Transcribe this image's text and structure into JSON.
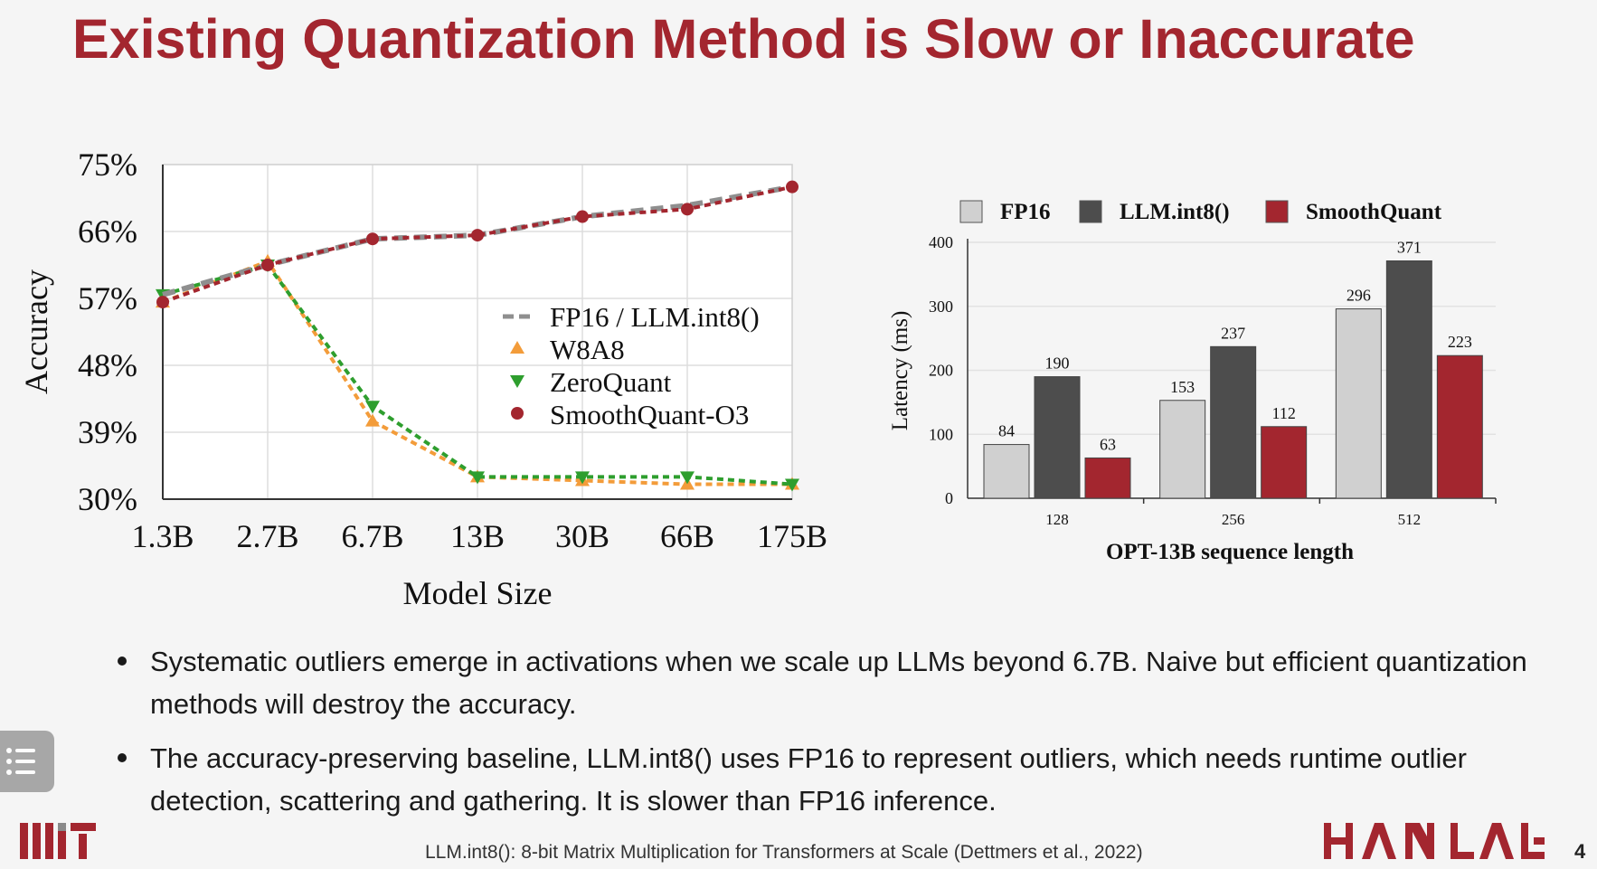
{
  "slide": {
    "title": "Existing Quantization Method is Slow or Inaccurate",
    "bullets": [
      "Systematic outliers emerge in activations when we scale up LLMs beyond 6.7B. Naive but efficient quantization methods will destroy the accuracy.",
      "The accuracy-preserving baseline, LLM.int8() uses FP16 to represent outliers, which needs runtime outlier detection, scattering and gathering. It is slower than FP16 inference."
    ],
    "citation": "LLM.int8(): 8-bit Matrix Multiplication for Transformers at Scale (Dettmers et al., 2022)",
    "page_number": "4",
    "logos": {
      "left": "MIT",
      "right": "HAN LAB"
    },
    "icons": {
      "menu": "menu-list-icon"
    }
  },
  "chart_data": [
    {
      "type": "line",
      "xlabel": "Model Size",
      "ylabel": "Accuracy",
      "categories": [
        "1.3B",
        "2.7B",
        "6.7B",
        "13B",
        "30B",
        "66B",
        "175B"
      ],
      "yticks": [
        "30%",
        "39%",
        "48%",
        "57%",
        "66%",
        "75%"
      ],
      "ylim": [
        30,
        75
      ],
      "grid": true,
      "legend_position": "center-right",
      "series": [
        {
          "name": "FP16 / LLM.int8()",
          "values": [
            57.5,
            61.5,
            65.0,
            65.5,
            68.0,
            69.5,
            72.0
          ],
          "color": "#8f8f8f",
          "marker": "none"
        },
        {
          "name": "W8A8",
          "values": [
            56.5,
            62.0,
            40.5,
            33.0,
            32.5,
            32.0,
            32.0
          ],
          "color": "#f39c3a",
          "marker": "triangle-up"
        },
        {
          "name": "ZeroQuant",
          "values": [
            57.5,
            61.5,
            42.5,
            33.0,
            33.0,
            33.0,
            32.0
          ],
          "color": "#2e9e2e",
          "marker": "triangle-down"
        },
        {
          "name": "SmoothQuant-O3",
          "values": [
            56.5,
            61.5,
            65.0,
            65.5,
            68.0,
            69.0,
            72.0
          ],
          "color": "#a3262f",
          "marker": "circle"
        }
      ]
    },
    {
      "type": "bar",
      "xlabel": "OPT-13B sequence length",
      "ylabel": "Latency (ms)",
      "categories": [
        "128",
        "256",
        "512"
      ],
      "ylim": [
        0,
        400
      ],
      "yticks": [
        "0",
        "100",
        "200",
        "300",
        "400"
      ],
      "grid": true,
      "legend_position": "top",
      "series": [
        {
          "name": "FP16",
          "values": [
            84,
            153,
            296
          ],
          "color": "#d0d0d0"
        },
        {
          "name": "LLM.int8()",
          "values": [
            190,
            237,
            371
          ],
          "color": "#4d4d4d"
        },
        {
          "name": "SmoothQuant",
          "values": [
            63,
            112,
            223
          ],
          "color": "#a3262f"
        }
      ]
    }
  ]
}
